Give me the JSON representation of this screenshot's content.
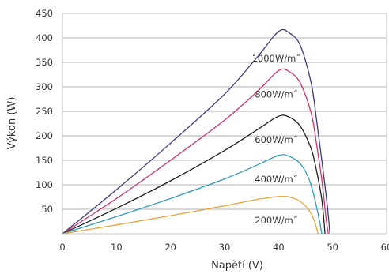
{
  "chart_data": {
    "type": "line",
    "xlabel": "Napětí (V)",
    "ylabel": "Výkon (W)",
    "xlim": [
      0,
      60
    ],
    "ylim": [
      0,
      450
    ],
    "x_ticks": [
      "0",
      "10",
      "20",
      "30",
      "40",
      "50",
      "60"
    ],
    "y_ticks": [
      "50",
      "100",
      "150",
      "200",
      "250",
      "300",
      "350",
      "400",
      "450"
    ],
    "grid": "horizontal",
    "series": [
      {
        "label": "1000W/m˝",
        "color": "#3a3a78",
        "points": [
          [
            0,
            0
          ],
          [
            10,
            90
          ],
          [
            20,
            185
          ],
          [
            30,
            285
          ],
          [
            36,
            360
          ],
          [
            40,
            413
          ],
          [
            42,
            410
          ],
          [
            44,
            385
          ],
          [
            46,
            310
          ],
          [
            47,
            235
          ],
          [
            48,
            150
          ],
          [
            49,
            60
          ],
          [
            49.5,
            0
          ]
        ]
      },
      {
        "label": "800W/m˝",
        "color": "#cf2f6e",
        "points": [
          [
            0,
            0
          ],
          [
            10,
            72
          ],
          [
            20,
            150
          ],
          [
            30,
            232
          ],
          [
            36,
            290
          ],
          [
            40,
            333
          ],
          [
            42,
            331
          ],
          [
            44,
            308
          ],
          [
            46,
            248
          ],
          [
            47,
            185
          ],
          [
            48,
            110
          ],
          [
            48.8,
            30
          ],
          [
            49.2,
            0
          ]
        ]
      },
      {
        "label": "600W/m˝",
        "color": "#1e1e1e",
        "points": [
          [
            0,
            0
          ],
          [
            10,
            52
          ],
          [
            20,
            108
          ],
          [
            30,
            170
          ],
          [
            36,
            212
          ],
          [
            40,
            240
          ],
          [
            42,
            238
          ],
          [
            44,
            220
          ],
          [
            46,
            175
          ],
          [
            47,
            130
          ],
          [
            48,
            70
          ],
          [
            48.6,
            0
          ]
        ]
      },
      {
        "label": "400W/m˝",
        "color": "#2f9bbf",
        "points": [
          [
            0,
            0
          ],
          [
            10,
            35
          ],
          [
            20,
            72
          ],
          [
            30,
            112
          ],
          [
            36,
            140
          ],
          [
            40,
            160
          ],
          [
            42,
            158
          ],
          [
            44,
            143
          ],
          [
            45.5,
            115
          ],
          [
            46.5,
            80
          ],
          [
            47.5,
            30
          ],
          [
            48,
            0
          ]
        ]
      },
      {
        "label": "200W/m˝",
        "color": "#e8a23a",
        "points": [
          [
            0,
            0
          ],
          [
            10,
            18
          ],
          [
            20,
            37
          ],
          [
            30,
            57
          ],
          [
            36,
            70
          ],
          [
            40,
            76
          ],
          [
            42,
            75
          ],
          [
            44,
            66
          ],
          [
            45.5,
            50
          ],
          [
            46.5,
            30
          ],
          [
            47.3,
            0
          ]
        ]
      }
    ]
  }
}
